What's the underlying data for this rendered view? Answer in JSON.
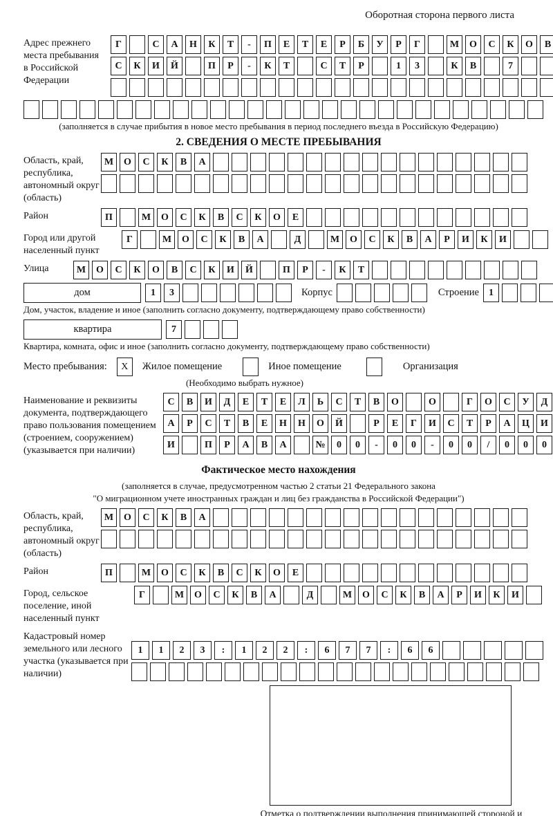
{
  "page": {
    "header_note": "Оборотная сторона первого листа",
    "section2_title": "2. СВЕДЕНИЯ О МЕСТЕ ПРЕБЫВАНИЯ",
    "actual_location_title": "Фактическое место нахождения",
    "actual_location_note_line1": "(заполняется в случае, предусмотренном частью 2 статьи 21 Федерального закона",
    "actual_location_note_line2": "\"О миграционном учете иностранных граждан и лиц без гражданства в Российской Федерации\")",
    "confirmation_caption": "Отметка о подтверждении выполнения принимающей стороной и иностранным гражданином или лицом без гражданства действий, необходимых для его постановки на учет по месту пребывания"
  },
  "prev_address": {
    "label": "Адрес прежнего места пребывания в Российской Федерации",
    "rows": [
      {
        "text": "Г САНКТ-ПЕТЕРБУРГ МОСКОВ",
        "cells": 24
      },
      {
        "text": "СКИЙ ПР-КТ СТР 13 КВ 7",
        "cells": 24
      },
      {
        "text": "",
        "cells": 24
      }
    ],
    "full_row": {
      "text": "",
      "cells": 28
    },
    "note": "(заполняется в случае прибытия в новое место пребывания в период последнего въезда в Российскую Федерацию)"
  },
  "stay_place": {
    "region": {
      "label": "Область, край, республика, автономный округ (область)",
      "rows": [
        {
          "text": "МОСКВА",
          "cells": 23
        },
        {
          "text": "",
          "cells": 23
        }
      ]
    },
    "district": {
      "label": "Район",
      "row": {
        "text": "П МОСКВСКОЕ",
        "cells": 23
      }
    },
    "city": {
      "label": "Город или другой населенный пункт",
      "row": {
        "text": "Г МОСКВА Д МОСКВАРИКИ",
        "cells": 23
      }
    },
    "street": {
      "label": "Улица",
      "row": {
        "text": "МОСКОВСКИЙ ПР-КТ",
        "cells": 25
      }
    },
    "house": {
      "box_label": "дом",
      "number": {
        "text": "13",
        "cells": 8
      },
      "korpus_label": "Корпус",
      "korpus": {
        "text": "",
        "cells": 5
      },
      "stroenie_label": "Строение",
      "stroenie": {
        "text": "1",
        "cells": 4
      },
      "note": "Дом, участок, владение и иное (заполнить согласно документу, подтверждающему право собственности)"
    },
    "apartment": {
      "box_label": "квартира",
      "number": {
        "text": "7",
        "cells": 4
      },
      "note": "Квартира, комната, офис и иное (заполнить согласно документу, подтверждающему право собственности)"
    },
    "place_type": {
      "label": "Место пребывания:",
      "options": [
        {
          "label": "Жилое помещение",
          "mark": "X"
        },
        {
          "label": "Иное помещение",
          "mark": ""
        },
        {
          "label": "Организация",
          "mark": ""
        }
      ],
      "note": "(Необходимо выбрать нужное)"
    },
    "document": {
      "label": "Наименование и реквизиты документа, подтверждающего право пользования помещением (строением, сооружением) (указывается при наличии)",
      "rows": [
        {
          "text": "СВИДЕТЕЛЬСТВО О ГОСУД",
          "cells": 21
        },
        {
          "text": "АРСТВЕННОЙ РЕГИСТРАЦИ",
          "cells": 21
        },
        {
          "text": "И ПРАВА №00-00-00/000",
          "cells": 21
        }
      ]
    }
  },
  "actual_location": {
    "region": {
      "label": "Область, край, республика, автономный округ (область)",
      "rows": [
        {
          "text": "МОСКВА",
          "cells": 23
        },
        {
          "text": "",
          "cells": 23
        }
      ]
    },
    "district": {
      "label": "Район",
      "row": {
        "text": "П МОСКВСКОЕ",
        "cells": 23
      }
    },
    "city": {
      "label": "Город, сельское поселение, иной населенный пункт",
      "row": {
        "text": "Г МОСКВА Д МОСКВАРИКИ",
        "cells": 22
      }
    },
    "cadastral": {
      "label": "Кадастровый номер земельного или лесного участка (указывается при наличии)",
      "rows": [
        {
          "text": "1123:122:677:66",
          "cells": 20
        },
        {
          "text": "",
          "cells": 22
        }
      ]
    }
  }
}
